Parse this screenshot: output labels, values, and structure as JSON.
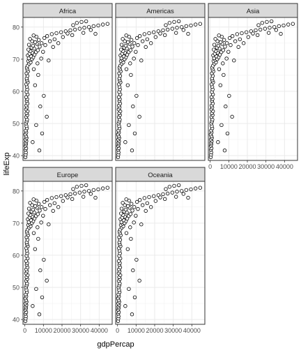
{
  "chart_data": {
    "type": "scatter",
    "xlabel": "gdpPercap",
    "ylabel": "lifeExp",
    "xlim": [
      -1000,
      47000
    ],
    "ylim": [
      38.5,
      83
    ],
    "xticks": [
      0,
      10000,
      20000,
      30000,
      40000
    ],
    "yticks": [
      40,
      50,
      60,
      70,
      80
    ],
    "panels": [
      {
        "label": "Africa"
      },
      {
        "label": "Americas"
      },
      {
        "label": "Asia"
      },
      {
        "label": "Europe"
      },
      {
        "label": "Oceania"
      }
    ],
    "points": [
      [
        300,
        39.5
      ],
      [
        450,
        40.3
      ],
      [
        550,
        41
      ],
      [
        400,
        41.8
      ],
      [
        700,
        42.3
      ],
      [
        350,
        43
      ],
      [
        600,
        43.5
      ],
      [
        500,
        44
      ],
      [
        800,
        44.5
      ],
      [
        420,
        45
      ],
      [
        900,
        45.5
      ],
      [
        650,
        46
      ],
      [
        300,
        46.6
      ],
      [
        750,
        47.2
      ],
      [
        520,
        47.8
      ],
      [
        1100,
        48.5
      ],
      [
        850,
        49.2
      ],
      [
        600,
        50
      ],
      [
        950,
        50.6
      ],
      [
        1200,
        51.2
      ],
      [
        700,
        52
      ],
      [
        1300,
        52.6
      ],
      [
        900,
        53.2
      ],
      [
        1500,
        53.8
      ],
      [
        650,
        54.4
      ],
      [
        1100,
        55
      ],
      [
        800,
        55.6
      ],
      [
        1400,
        56.2
      ],
      [
        1000,
        57
      ],
      [
        1250,
        57.6
      ],
      [
        700,
        58.2
      ],
      [
        1500,
        59
      ],
      [
        900,
        59.8
      ],
      [
        1300,
        60.6
      ],
      [
        1100,
        61.4
      ],
      [
        800,
        62.2
      ],
      [
        1600,
        62.8
      ],
      [
        1200,
        63.4
      ],
      [
        1000,
        64
      ],
      [
        1400,
        64.8
      ],
      [
        900,
        65.6
      ],
      [
        1700,
        66.2
      ],
      [
        1300,
        66.8
      ],
      [
        1100,
        67.4
      ],
      [
        1500,
        68
      ],
      [
        2300,
        68.6
      ],
      [
        3100,
        69
      ],
      [
        1800,
        69.4
      ],
      [
        2700,
        69.8
      ],
      [
        3800,
        70
      ],
      [
        2100,
        70.3
      ],
      [
        4500,
        70.6
      ],
      [
        3300,
        70.9
      ],
      [
        1600,
        71.2
      ],
      [
        5200,
        71.4
      ],
      [
        2500,
        71.7
      ],
      [
        4000,
        72
      ],
      [
        6000,
        72.2
      ],
      [
        3000,
        72.5
      ],
      [
        7000,
        72.8
      ],
      [
        1900,
        73
      ],
      [
        5000,
        73.3
      ],
      [
        3600,
        73.6
      ],
      [
        8000,
        73.9
      ],
      [
        4400,
        74.2
      ],
      [
        2200,
        74.5
      ],
      [
        6500,
        74.8
      ],
      [
        9000,
        75
      ],
      [
        5600,
        75.3
      ],
      [
        3900,
        75.6
      ],
      [
        7500,
        76
      ],
      [
        2800,
        76.3
      ],
      [
        10500,
        76.6
      ],
      [
        6200,
        77
      ],
      [
        4700,
        77.4
      ],
      [
        12000,
        77.2
      ],
      [
        14500,
        77.8
      ],
      [
        17000,
        78.1
      ],
      [
        19500,
        78.4
      ],
      [
        22000,
        78.7
      ],
      [
        24500,
        79
      ],
      [
        27000,
        79.2
      ],
      [
        29500,
        79.5
      ],
      [
        32000,
        79.8
      ],
      [
        34500,
        80
      ],
      [
        37000,
        80.3
      ],
      [
        39500,
        80.5
      ],
      [
        42000,
        80.8
      ],
      [
        44500,
        81
      ],
      [
        28000,
        81.3
      ],
      [
        30500,
        81.6
      ],
      [
        33000,
        81.8
      ],
      [
        26000,
        80.6
      ],
      [
        35500,
        79.1
      ],
      [
        23000,
        78
      ],
      [
        20500,
        76.9
      ],
      [
        16000,
        76.2
      ],
      [
        13500,
        75.6
      ],
      [
        18000,
        75
      ],
      [
        31500,
        78.2
      ],
      [
        38000,
        77.9
      ],
      [
        25500,
        77.5
      ],
      [
        11000,
        74.4
      ],
      [
        8800,
        70.2
      ],
      [
        6800,
        68.7
      ],
      [
        4800,
        66.9
      ],
      [
        15200,
        73.8
      ],
      [
        9800,
        72.3
      ],
      [
        12800,
        69.6
      ],
      [
        7200,
        65.1
      ],
      [
        5500,
        61.9
      ],
      [
        10200,
        58.6
      ],
      [
        8300,
        55.3
      ],
      [
        11800,
        52.1
      ],
      [
        6100,
        49.5
      ],
      [
        9300,
        46.9
      ],
      [
        4200,
        44.2
      ],
      [
        7800,
        41.6
      ]
    ]
  }
}
